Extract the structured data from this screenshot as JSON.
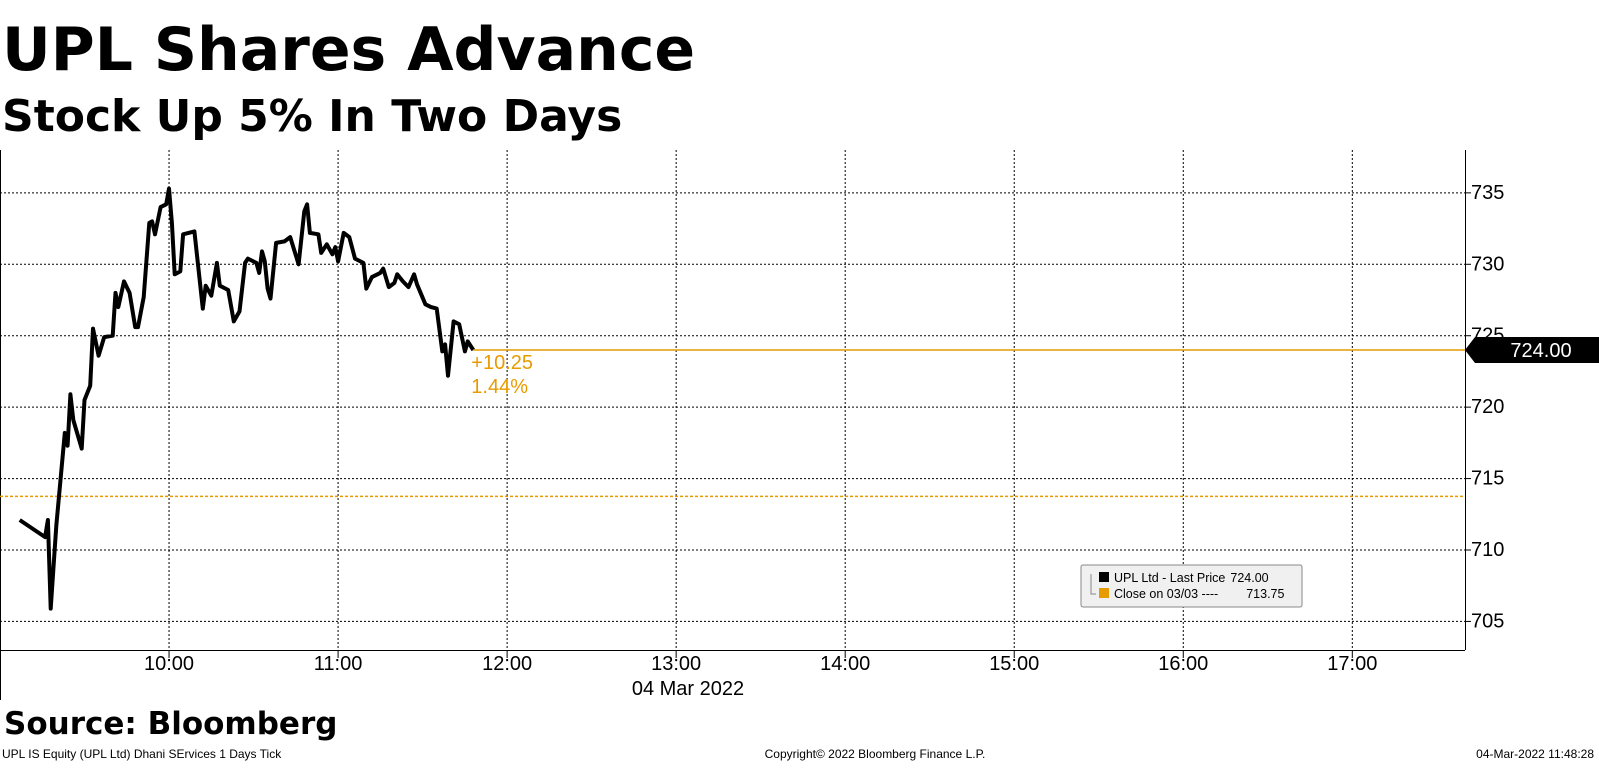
{
  "chart_data": {
    "type": "line",
    "title": "UPL Shares Advance",
    "subtitle": "Stock Up 5% In Two Days",
    "source": "Source: Bloomberg",
    "footer_left": "UPL IS Equity (UPL Ltd) Dhani SErvices 1 Days  Tick",
    "footer_center": "Copyright© 2022 Bloomberg Finance L.P.",
    "footer_right": "04-Mar-2022 11:48:28",
    "xlabel": "04 Mar 2022",
    "x": [
      "09:07",
      "09:16",
      "09:17",
      "09:18",
      "09:20",
      "09:23",
      "09:24",
      "09:25",
      "09:26",
      "09:29",
      "09:30",
      "09:32",
      "09:33",
      "09:35",
      "09:37",
      "09:40",
      "09:41",
      "09:42",
      "09:44",
      "09:46",
      "09:48",
      "09:49",
      "09:51",
      "09:53",
      "09:54",
      "09:55",
      "09:57",
      "09:59",
      "10:00",
      "10:01",
      "10:02",
      "10:04",
      "10:05",
      "10:09",
      "10:12",
      "10:13",
      "10:15",
      "10:17",
      "10:18",
      "10:21",
      "10:23",
      "10:25",
      "10:27",
      "10:28",
      "10:31",
      "10:32",
      "10:33",
      "10:34",
      "10:35",
      "10:36",
      "10:38",
      "10:41",
      "10:43",
      "10:46",
      "10:48",
      "10:49",
      "10:50",
      "10:53",
      "10:54",
      "10:56",
      "10:58",
      "10:59",
      "11:00",
      "11:02",
      "11:04",
      "11:06",
      "11:09",
      "11:10",
      "11:12",
      "11:15",
      "11:16",
      "11:18",
      "11:20",
      "11:21",
      "11:23",
      "11:25",
      "11:27",
      "11:28",
      "11:31",
      "11:33",
      "11:35",
      "11:37",
      "11:38",
      "11:39",
      "11:41",
      "11:43",
      "11:45",
      "11:46",
      "11:48"
    ],
    "series": [
      {
        "name": "UPL Ltd - Last Price",
        "color": "#000000",
        "values": [
          712.1,
          710.9,
          712.1,
          705.9,
          711.7,
          718.2,
          717.3,
          720.9,
          719.1,
          717.1,
          720.5,
          721.5,
          725.5,
          723.6,
          724.9,
          725.0,
          728.0,
          727.0,
          728.8,
          728.0,
          725.6,
          725.6,
          727.7,
          732.9,
          733.0,
          732.1,
          734.0,
          734.2,
          735.3,
          732.9,
          729.3,
          729.5,
          732.1,
          732.3,
          726.9,
          728.5,
          727.8,
          730.1,
          728.5,
          728.2,
          726.0,
          726.7,
          730.1,
          730.4,
          730.1,
          729.4,
          730.9,
          730.2,
          728.3,
          727.6,
          731.5,
          731.6,
          731.9,
          730.0,
          733.7,
          734.2,
          732.2,
          732.1,
          730.8,
          731.4,
          730.7,
          731.2,
          730.2,
          732.2,
          731.9,
          730.4,
          730.1,
          728.3,
          729.1,
          729.4,
          729.7,
          728.4,
          728.7,
          729.3,
          728.8,
          728.4,
          729.3,
          728.6,
          727.2,
          727.0,
          726.9,
          723.9,
          724.4,
          722.2,
          726.0,
          725.8,
          723.9,
          724.6,
          724.0
        ]
      }
    ],
    "last_price": {
      "value": 724,
      "label": "724.00",
      "color": "#e89b00"
    },
    "change_label": "+10.25",
    "change_pct_label": "1.44%",
    "reference_line": {
      "name": "Close on 03/03 ----",
      "value": 713.75,
      "label": "713.75",
      "color": "#e89b00"
    },
    "xlim": [
      "09:00",
      "17:40"
    ],
    "xticks": [
      "10:00",
      "11:00",
      "12:00",
      "13:00",
      "14:00",
      "15:00",
      "16:00",
      "17:00"
    ],
    "ylim": [
      703,
      738
    ],
    "yticks": [
      705,
      710,
      715,
      720,
      725,
      730,
      735
    ],
    "grid": true
  }
}
